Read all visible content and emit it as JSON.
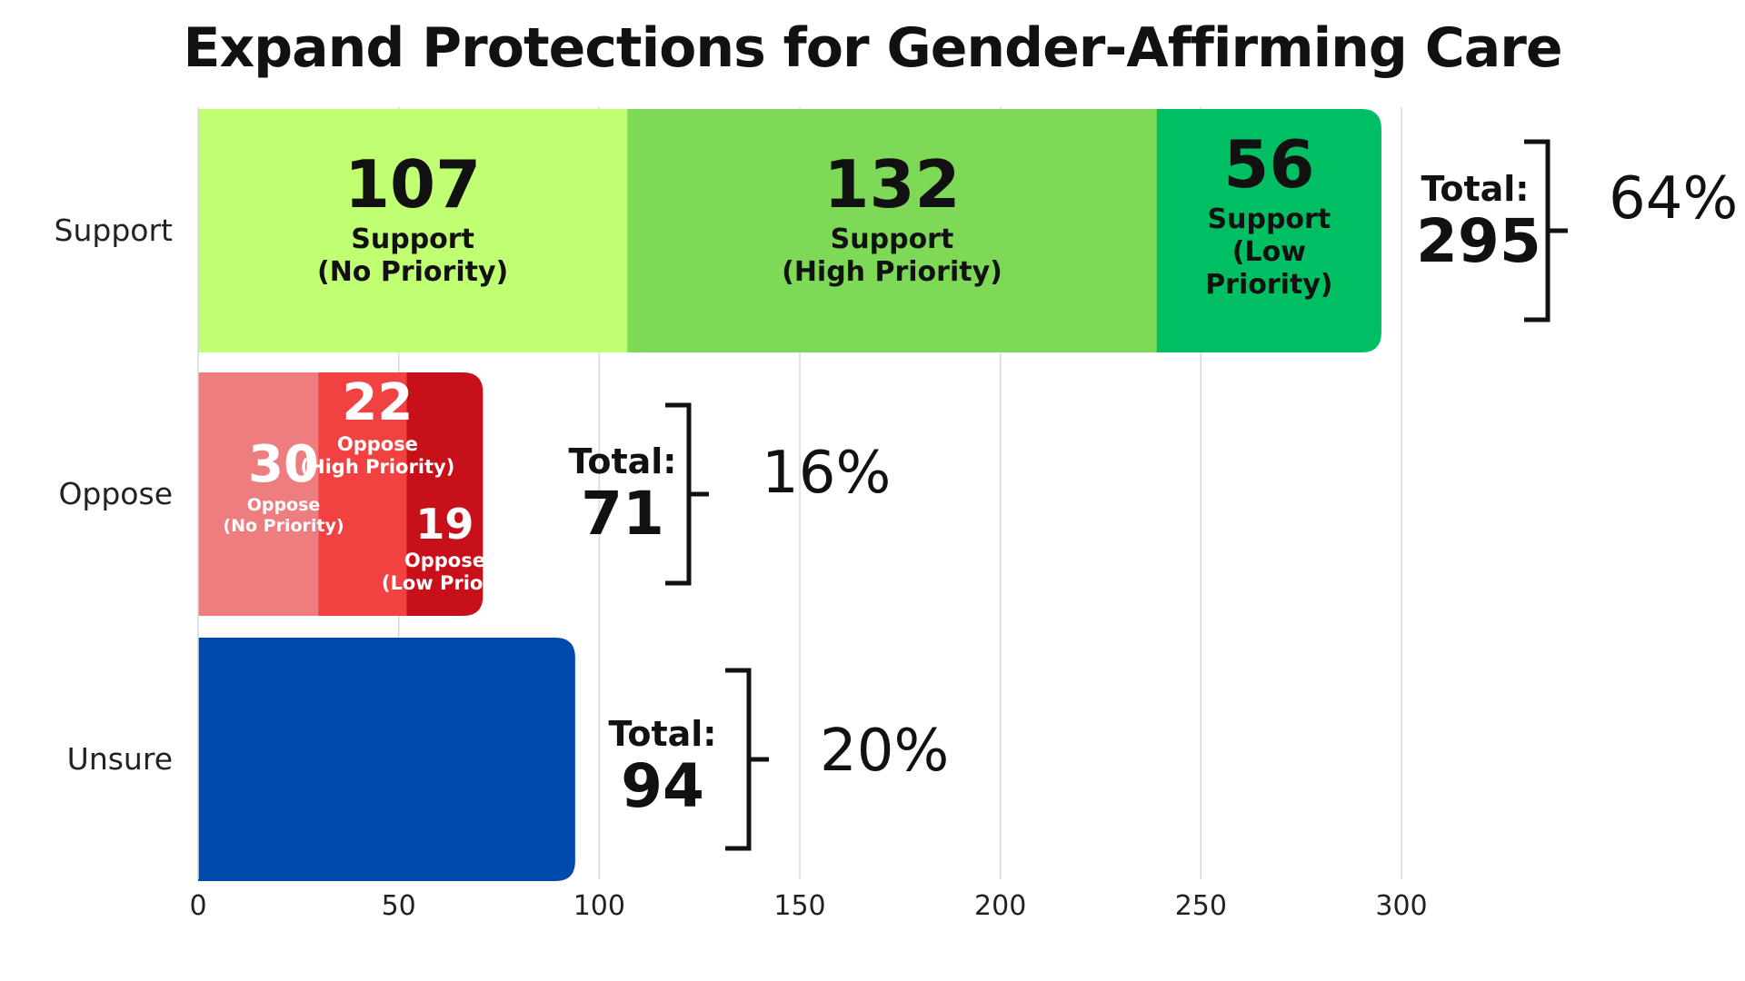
{
  "chart_data": {
    "type": "bar",
    "orientation": "horizontal",
    "stacked": true,
    "title": "Expand Protections for Gender-Affirming Care",
    "xlabel": "",
    "ylabel": "",
    "xlim": [
      0,
      300
    ],
    "xticks": [
      "0",
      "50",
      "100",
      "150",
      "200",
      "250",
      "300"
    ],
    "grid": true,
    "categories": [
      "Support",
      "Oppose",
      "Unsure"
    ],
    "bars": [
      {
        "category": "Support",
        "segments": [
          {
            "value": 107,
            "value_label": "107",
            "label_lines": [
              "Support",
              "(No Priority)"
            ],
            "color": "#c1ff72"
          },
          {
            "value": 132,
            "value_label": "132",
            "label_lines": [
              "Support",
              "(High Priority)"
            ],
            "color": "#7ed957"
          },
          {
            "value": 56,
            "value_label": "56",
            "label_lines": [
              "Support",
              "(Low",
              "Priority)"
            ],
            "color": "#00bf63"
          }
        ],
        "total_label": "Total:",
        "total": 295,
        "total_text": "295",
        "percent": "64%"
      },
      {
        "category": "Oppose",
        "segments": [
          {
            "value": 30,
            "value_label": "30",
            "label_lines": [
              "Oppose",
              "(No Priority)"
            ],
            "color": "#ee7d7f"
          },
          {
            "value": 22,
            "value_label": "22",
            "label_lines": [
              "Oppose",
              "(High Priority)"
            ],
            "color": "#f24141"
          },
          {
            "value": 19,
            "value_label": "19",
            "label_lines": [
              "Oppose",
              "(Low Priorit"
            ],
            "color": "#c8101a"
          }
        ],
        "total_label": "Total:",
        "total": 71,
        "total_text": "71",
        "percent": "16%"
      },
      {
        "category": "Unsure",
        "segments": [
          {
            "value": 94,
            "value_label": "",
            "label_lines": [],
            "color": "#004aad"
          }
        ],
        "total_label": "Total:",
        "total": 94,
        "total_text": "94",
        "percent": "20%"
      }
    ]
  }
}
